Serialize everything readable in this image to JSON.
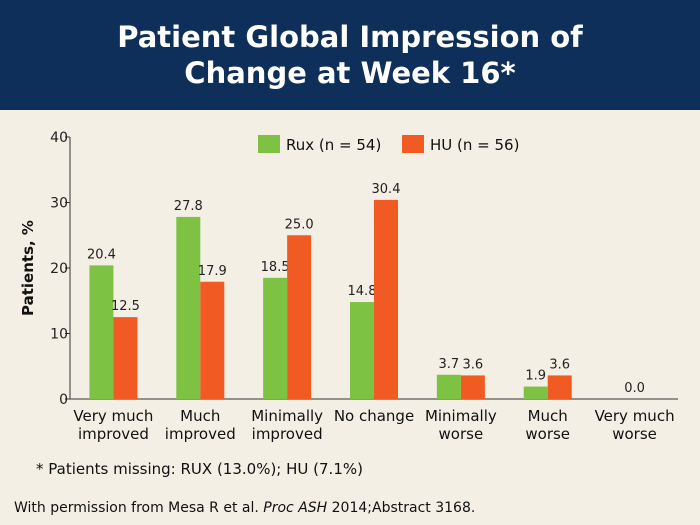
{
  "title": {
    "line1": "Patient Global Impression of",
    "line2": "Change at Week 16*"
  },
  "footnote": "* Patients missing: RUX (13.0%); HU (7.1%)",
  "citation": {
    "prefix": "With permission from Mesa R et al. ",
    "journal": "Proc ASH",
    "suffix": " 2014;Abstract 3168."
  },
  "colors": {
    "background": "#f3efe4",
    "title_bar": "#0e2f59",
    "rux": "#7dc242",
    "hu": "#f15a22"
  },
  "chart_data": {
    "type": "bar",
    "ylabel": "Patients, %",
    "ylim": [
      0,
      40
    ],
    "yticks": [
      "0",
      "10",
      "20",
      "30",
      "40"
    ],
    "legend_position": "top",
    "categories": [
      [
        "Very much",
        "improved"
      ],
      [
        "Much",
        "improved"
      ],
      [
        "Minimally",
        "improved"
      ],
      [
        "No change"
      ],
      [
        "Minimally",
        "worse"
      ],
      [
        "Much",
        "worse"
      ],
      [
        "Very much",
        "worse"
      ]
    ],
    "series": [
      {
        "name": "Rux (n = 54)",
        "color": "#7dc242",
        "values": [
          20.4,
          27.8,
          18.5,
          14.8,
          3.7,
          1.9,
          0.0
        ],
        "labels": [
          "20.4",
          "27.8",
          "18.5",
          "14.8",
          "3.7",
          "1.9",
          ""
        ]
      },
      {
        "name": "HU (n = 56)",
        "color": "#f15a22",
        "values": [
          12.5,
          17.9,
          25.0,
          30.4,
          3.6,
          3.6,
          0.0
        ],
        "labels": [
          "12.5",
          "17.9",
          "25.0",
          "30.4",
          "3.6",
          "3.6",
          ""
        ]
      }
    ],
    "category_labels": [
      "",
      "",
      "",
      "",
      "",
      "",
      "0.0"
    ]
  }
}
